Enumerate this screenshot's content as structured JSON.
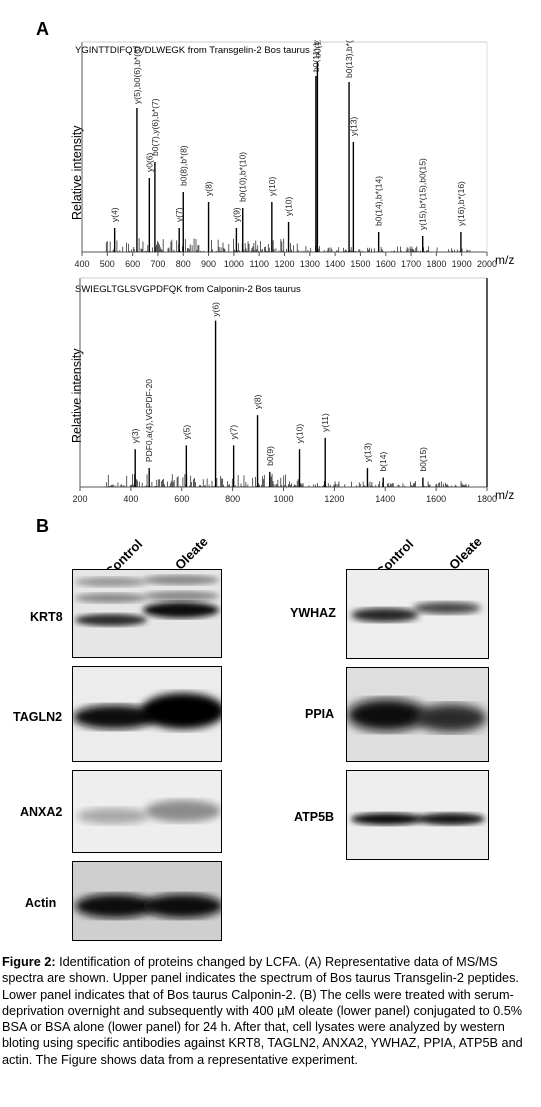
{
  "panel_a_label": "A",
  "panel_b_label": "B",
  "spectra": [
    {
      "peptide": "YGINTTDIFQTVDLWEGK from Transgelin-2 Bos taurus",
      "ylabel": "Relative intensity",
      "xlabel": "m/z",
      "ticks": [
        "400",
        "500",
        "600",
        "700",
        "800",
        "900",
        "1000",
        "1100",
        "1200",
        "1300",
        "1400",
        "1500",
        "1600",
        "1700",
        "1800",
        "1900",
        "2000"
      ],
      "peaks": [
        {
          "mz": 529,
          "h": 0.12,
          "label": "y(4)"
        },
        {
          "mz": 617,
          "h": 0.72,
          "label": "y(5),b0(6),b*(6)"
        },
        {
          "mz": 666,
          "h": 0.37,
          "label": "y0(6)"
        },
        {
          "mz": 688,
          "h": 0.45,
          "label": "b0(7),y(6),b*(7)"
        },
        {
          "mz": 784,
          "h": 0.12,
          "label": "y(7)"
        },
        {
          "mz": 800,
          "h": 0.3,
          "label": "b0(8),b*(8)"
        },
        {
          "mz": 900,
          "h": 0.25,
          "label": "y(8)"
        },
        {
          "mz": 1010,
          "h": 0.12,
          "label": "y(9)"
        },
        {
          "mz": 1035,
          "h": 0.22,
          "label": "b0(10),b*(10)"
        },
        {
          "mz": 1150,
          "h": 0.25,
          "label": "y(10)"
        },
        {
          "mz": 1216,
          "h": 0.15,
          "label": "y(10)"
        },
        {
          "mz": 1324,
          "h": 0.88,
          "label": "b0(11),b*(11)"
        },
        {
          "mz": 1330,
          "h": 0.95,
          "label": "b0(12),b*(12)"
        },
        {
          "mz": 1455,
          "h": 0.85,
          "label": "b0(13),b*(13)"
        },
        {
          "mz": 1472,
          "h": 0.55,
          "label": "y(13)"
        },
        {
          "mz": 1572,
          "h": 0.1,
          "label": "b0(14),b*(14)"
        },
        {
          "mz": 1746,
          "h": 0.08,
          "label": "y(15),b*(15),b0(15)"
        },
        {
          "mz": 1897,
          "h": 0.1,
          "label": "y(16),b*(16)"
        }
      ]
    },
    {
      "peptide": "SWIEGLTGLSVGPDFQK from Calponin-2 Bos taurus",
      "ylabel": "Relative intensity",
      "xlabel": "m/z",
      "ticks": [
        "200",
        "400",
        "600",
        "800",
        "1000",
        "1200",
        "1400",
        "1600",
        "1800"
      ],
      "peaks": [
        {
          "mz": 417,
          "h": 0.2,
          "label": "y(3)"
        },
        {
          "mz": 472,
          "h": 0.1,
          "label": "PDF0,a(4),VGPDF-20"
        },
        {
          "mz": 618,
          "h": 0.22,
          "label": "y(5)"
        },
        {
          "mz": 733,
          "h": 0.88,
          "label": "y(6)"
        },
        {
          "mz": 804,
          "h": 0.22,
          "label": "y(7)"
        },
        {
          "mz": 898,
          "h": 0.38,
          "label": "y(8)"
        },
        {
          "mz": 946,
          "h": 0.08,
          "label": "b0(9)"
        },
        {
          "mz": 1063,
          "h": 0.2,
          "label": "y(10)"
        },
        {
          "mz": 1164,
          "h": 0.26,
          "label": "y(11)"
        },
        {
          "mz": 1330,
          "h": 0.1,
          "label": "y(13)"
        },
        {
          "mz": 1392,
          "h": 0.05,
          "label": "b(14)"
        },
        {
          "mz": 1548,
          "h": 0.05,
          "label": "b0(15)"
        }
      ]
    }
  ],
  "blots": {
    "lanes": [
      "Control",
      "Oleate"
    ],
    "left": [
      {
        "protein": "KRT8"
      },
      {
        "protein": "TAGLN2"
      },
      {
        "protein": "ANXA2"
      },
      {
        "protein": "Actin"
      }
    ],
    "right": [
      {
        "protein": "YWHAZ"
      },
      {
        "protein": "PPIA"
      },
      {
        "protein": "ATP5B"
      }
    ]
  },
  "caption": {
    "label": "Figure 2:",
    "text": " Identification of proteins changed by LCFA. (A) Representative data of MS/MS spectra are shown. Upper panel indicates the spectrum of Bos taurus Transgelin-2 peptides. Lower panel indicates that of Bos taurus Calponin-2. (B) The cells were treated with serum-deprivation overnight and subsequently with 400 µM oleate (lower panel) conjugated to 0.5% BSA or BSA alone (lower panel) for 24 h. After that, cell lysates were analyzed by western bloting using specific antibodies against KRT8, TAGLN2, ANXA2, YWHAZ, PPIA, ATP5B and actin. The Figure shows data from a representative experiment."
  }
}
